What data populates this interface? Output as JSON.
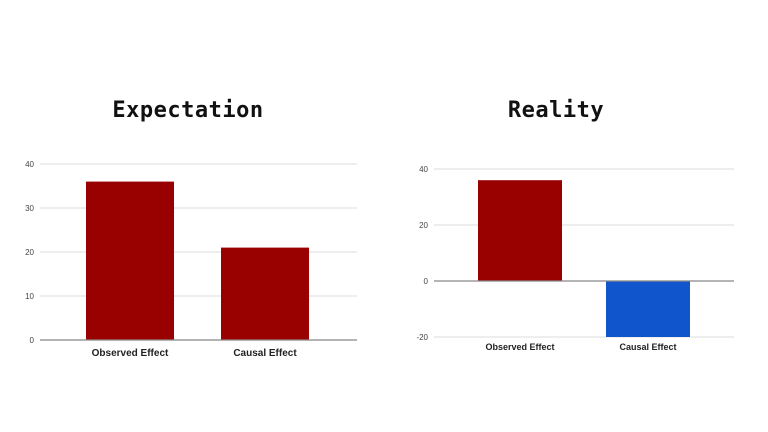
{
  "panels": {
    "left_title": "Expectation",
    "right_title": "Reality"
  },
  "colors": {
    "positive": "#990000",
    "negative": "#1155cc",
    "grid": "#dddddd",
    "baseline": "#888888"
  },
  "chart_data": [
    {
      "type": "bar",
      "title": "Expectation",
      "categories": [
        "Observed Effect",
        "Causal Effect"
      ],
      "values": [
        36,
        21
      ],
      "ylim": [
        0,
        40
      ],
      "yticks": [
        0,
        10,
        20,
        30,
        40
      ],
      "xlabel": "",
      "ylabel": "",
      "grid": true
    },
    {
      "type": "bar",
      "title": "Reality",
      "categories": [
        "Observed Effect",
        "Causal Effect"
      ],
      "values": [
        36,
        -20
      ],
      "ylim": [
        -20,
        40
      ],
      "yticks": [
        -20,
        0,
        20,
        40
      ],
      "xlabel": "",
      "ylabel": "",
      "grid": true
    }
  ]
}
